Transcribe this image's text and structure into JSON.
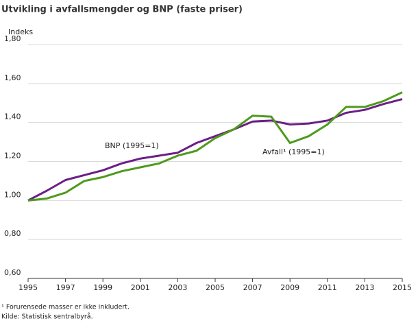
{
  "chart_data": {
    "type": "line",
    "title": "Utvikling i avfallsmengder og BNP (faste priser)",
    "y_label": "Indeks",
    "x": [
      1995,
      1996,
      1997,
      1998,
      1999,
      2000,
      2001,
      2002,
      2003,
      2004,
      2005,
      2006,
      2007,
      2008,
      2009,
      2010,
      2011,
      2012,
      2013,
      2014,
      2015
    ],
    "series": [
      {
        "name": "BNP (1995=1)",
        "color": "#6b1f86",
        "values": [
          1.0,
          1.05,
          1.105,
          1.13,
          1.155,
          1.19,
          1.215,
          1.23,
          1.245,
          1.295,
          1.33,
          1.365,
          1.405,
          1.41,
          1.39,
          1.395,
          1.41,
          1.45,
          1.465,
          1.495,
          1.52
        ]
      },
      {
        "name": "Avfall¹ (1995=1)",
        "color": "#4e9a1c",
        "values": [
          1.0,
          1.01,
          1.04,
          1.1,
          1.12,
          1.15,
          1.17,
          1.19,
          1.23,
          1.255,
          1.32,
          1.365,
          1.435,
          1.43,
          1.295,
          1.33,
          1.39,
          1.48,
          1.48,
          1.51,
          1.555
        ]
      }
    ],
    "xlim": [
      1995,
      2015
    ],
    "xticks": [
      1995,
      1997,
      1999,
      2001,
      2003,
      2005,
      2007,
      2009,
      2011,
      2013,
      2015
    ],
    "ylim": [
      0.6,
      1.8
    ],
    "yticks": [
      {
        "value": 0.6,
        "label": "0,60"
      },
      {
        "value": 0.8,
        "label": "0,80"
      },
      {
        "value": 1.0,
        "label": "1,00"
      },
      {
        "value": 1.2,
        "label": "1,20"
      },
      {
        "value": 1.4,
        "label": "1,40"
      },
      {
        "value": 1.6,
        "label": "1,60"
      },
      {
        "value": 1.8,
        "label": "1,80"
      }
    ],
    "grid": true,
    "footnotes": [
      "¹ Forurensede masser er ikke inkludert.",
      "Kilde: Statistisk sentralbyrå."
    ]
  }
}
